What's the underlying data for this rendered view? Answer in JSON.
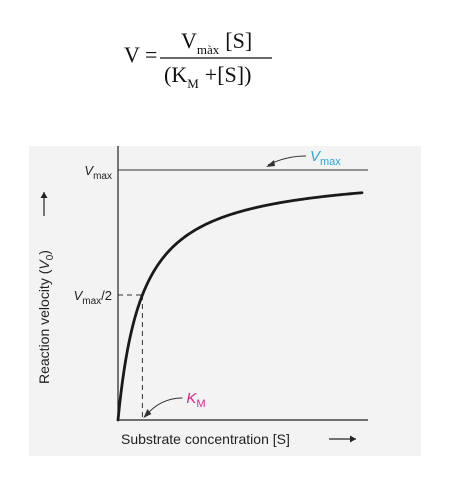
{
  "formula": {
    "lhs": "V =",
    "num_V": "V",
    "num_sub": "màx",
    "num_S": "[S]",
    "den_open": "(K",
    "den_sub": "M",
    "den_rest": "+[S])"
  },
  "chart_data": {
    "type": "line",
    "title": "",
    "xlabel": "Substrate concentration [S]",
    "ylabel_main": "Reaction velocity (",
    "ylabel_var": "V",
    "ylabel_sub": "0",
    "ylabel_close": ")",
    "xlim": [
      0,
      10
    ],
    "ylim": [
      0,
      1.08
    ],
    "vmax": 1.0,
    "km": 1.0,
    "vmax_tick": {
      "main": "V",
      "sub": "max"
    },
    "half_tick": {
      "main": "V",
      "sub": "max",
      "rest": "/2"
    },
    "annotations": {
      "vmax": {
        "main": "V",
        "sub": "max",
        "color": "#2aa7d8"
      },
      "km": {
        "main": "K",
        "sub": "M",
        "color": "#d6288b"
      }
    },
    "curve_color": "#1a1a1a",
    "grid": false
  }
}
